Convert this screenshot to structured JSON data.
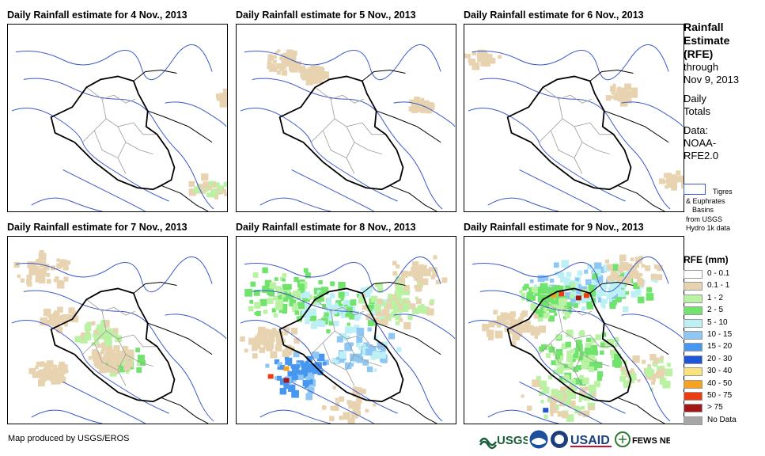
{
  "panels": [
    {
      "title": "Daily Rainfall estimate for 4 Nov., 2013",
      "intensity": 0
    },
    {
      "title": "Daily Rainfall estimate for 5 Nov., 2013",
      "intensity": 0
    },
    {
      "title": "Daily Rainfall estimate for 6 Nov., 2013",
      "intensity": 0
    },
    {
      "title": "Daily Rainfall estimate for 7 Nov., 2013",
      "intensity": 1
    },
    {
      "title": "Daily Rainfall estimate for 8 Nov., 2013",
      "intensity": 3
    },
    {
      "title": "Daily Rainfall estimate for 9 Nov., 2013",
      "intensity": 4
    }
  ],
  "sidebar": {
    "title_lines": [
      "Rainfall",
      "Estimate",
      "(RFE)"
    ],
    "through_label": "through",
    "through_date": "Nov 9, 2013",
    "daily_line1": "Daily",
    "daily_line2": "Totals",
    "data_line1": "Data:",
    "data_line2": "NOAA-",
    "data_line3": "RFE2.0"
  },
  "basin_legend": {
    "line1": "Tigres",
    "line2": "& Euphrates",
    "line3": "Basins",
    "line4": "from USGS",
    "line5": "Hydro 1k data"
  },
  "legend": {
    "title": "RFE (mm)",
    "classes": [
      {
        "label": "0 - 0.1",
        "color": "#ffffff"
      },
      {
        "label": "0.1 - 1",
        "color": "#e8d3b0"
      },
      {
        "label": "1 - 2",
        "color": "#b8f2a2"
      },
      {
        "label": "2 - 5",
        "color": "#6fe36b"
      },
      {
        "label": "5 - 10",
        "color": "#bdf0f4"
      },
      {
        "label": "10 - 15",
        "color": "#8ec6f4"
      },
      {
        "label": "15 - 20",
        "color": "#4797f0"
      },
      {
        "label": "20 - 30",
        "color": "#1f56d8"
      },
      {
        "label": "30 - 40",
        "color": "#f9e27a"
      },
      {
        "label": "40 - 50",
        "color": "#f7a21e"
      },
      {
        "label": "50 - 75",
        "color": "#ee3b10"
      },
      {
        "label": "> 75",
        "color": "#a31616"
      },
      {
        "label": "No Data",
        "color": "#a6a6a6"
      }
    ]
  },
  "footer": {
    "credit": "Map produced by USGS/EROS"
  },
  "logos": {
    "usgs": "USGS",
    "usaid": "USAID",
    "fews": "FEWS NET"
  }
}
